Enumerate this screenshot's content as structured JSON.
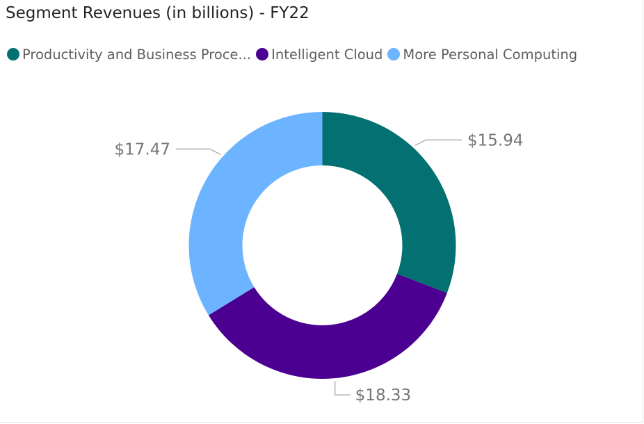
{
  "chart_data": {
    "type": "donut",
    "title": "Segment Revenues (in billions) - FY22",
    "categories": [
      "Productivity and Business Processes",
      "Intelligent Cloud",
      "More Personal Computing"
    ],
    "legend_labels": [
      "Productivity and Business Proce...",
      "Intelligent Cloud",
      "More Personal Computing"
    ],
    "values": [
      15.94,
      18.33,
      17.47
    ],
    "data_labels": [
      "$15.94",
      "$18.33",
      "$17.47"
    ],
    "colors": [
      "#037171",
      "#4B0092",
      "#6CB4FF"
    ],
    "legend_position": "top-left"
  }
}
